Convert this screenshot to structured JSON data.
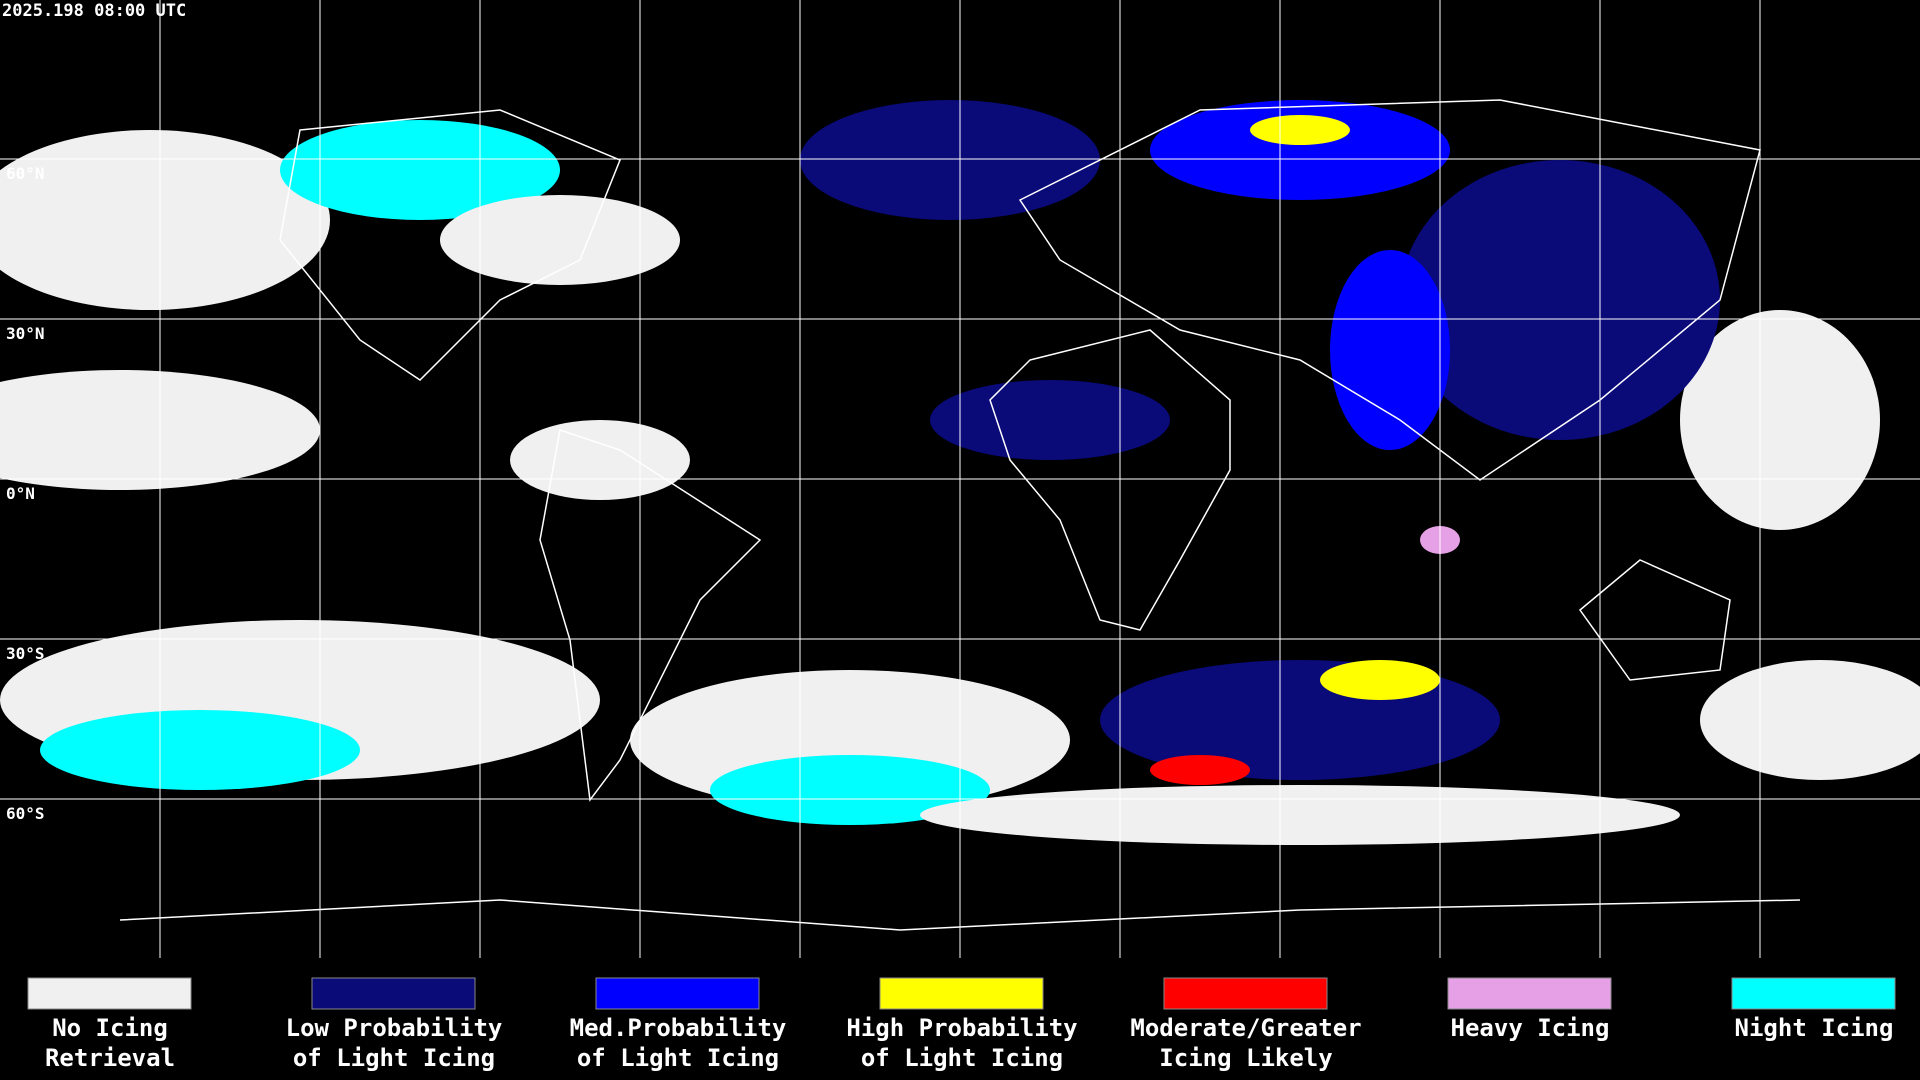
{
  "header": {
    "timestamp": "2025.198 08:00 UTC"
  },
  "map": {
    "latitude_labels": [
      "60°N",
      "30°N",
      "0°N",
      "30°S",
      "60°S"
    ]
  },
  "legend": [
    {
      "color": "#f0f0f0",
      "lines": [
        "No Icing",
        "Retrieval"
      ]
    },
    {
      "color": "#0a0a78",
      "lines": [
        "Low Probability",
        "of Light Icing"
      ]
    },
    {
      "color": "#0000ff",
      "lines": [
        "Med.Probability",
        "of Light Icing"
      ]
    },
    {
      "color": "#ffff00",
      "lines": [
        "High Probability",
        "of Light Icing"
      ]
    },
    {
      "color": "#ff0000",
      "lines": [
        "Moderate/Greater",
        "Icing Likely"
      ]
    },
    {
      "color": "#e6a0e6",
      "lines": [
        "Heavy Icing",
        ""
      ]
    },
    {
      "color": "#00ffff",
      "lines": [
        "Night Icing",
        ""
      ]
    }
  ]
}
